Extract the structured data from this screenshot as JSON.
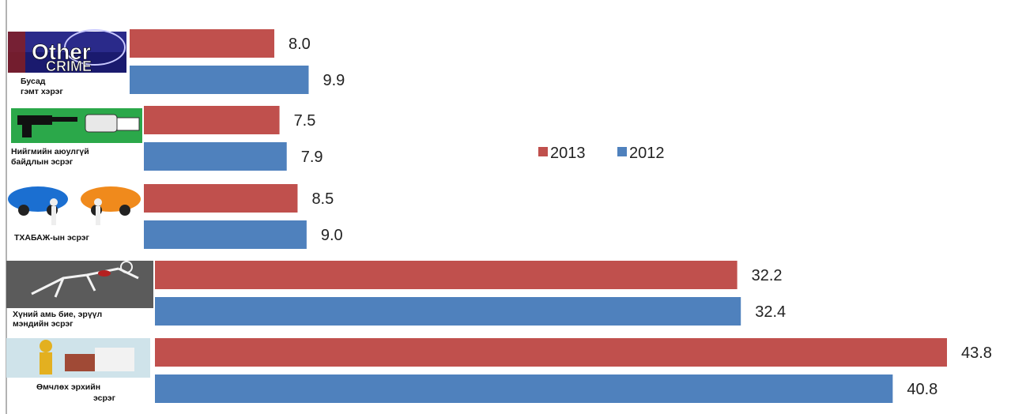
{
  "chart_data": {
    "type": "bar",
    "orientation": "horizontal",
    "categories": [
      "Бусад гэмт хэрэг",
      "Нийгмийн аюулгүй байдлын эсрэг",
      "ТХАБАЖ-ын эсрэг",
      "Хүний амь бие, эрүүл мэндийн эсрэг",
      "Өмчлөх эрхийн эсрэг"
    ],
    "category_label_lines": [
      [
        "Бусад",
        "гэмт хэрэг"
      ],
      [
        "Нийгмийн аюулгүй",
        "байдлын эсрэг"
      ],
      [
        "ТХАБАЖ-ын эсрэг"
      ],
      [
        "Хүний амь бие, эрүүл",
        "мэндийн эсрэг"
      ],
      [
        "Өмчлөх эрхийн",
        "эсрэг"
      ]
    ],
    "series": [
      {
        "name": "2013",
        "color": "#c0504d",
        "values": [
          8.0,
          7.5,
          8.5,
          32.2,
          43.8
        ],
        "labels": [
          "8.0",
          "7.5",
          "8.5",
          "32.2",
          "43.8"
        ]
      },
      {
        "name": "2012",
        "color": "#4f81bd",
        "values": [
          9.9,
          7.9,
          9.0,
          32.4,
          40.8
        ],
        "labels": [
          "9.9",
          "7.9",
          "9.0",
          "32.4",
          "40.8"
        ]
      }
    ],
    "legend_position": "top-right",
    "grid": false,
    "icons": [
      "other-crime-logo-icon",
      "gun-hand-icon",
      "car-crash-icon",
      "body-outline-icon",
      "puzzle-figure-icon"
    ],
    "logo_text": [
      "Other",
      "CRIME"
    ]
  }
}
